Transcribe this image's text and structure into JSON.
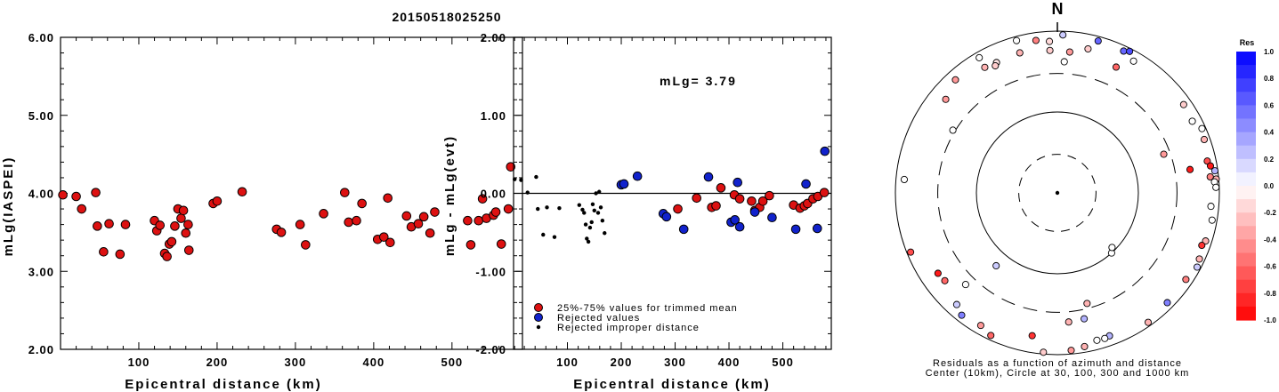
{
  "page_title": "20150518025250",
  "chart_data": [
    {
      "type": "scatter",
      "xlabel": "Epicentral distance (km)",
      "ylabel": "mLg(IASPEI)",
      "xlim": [
        0,
        590
      ],
      "ylim": [
        2.0,
        6.0
      ],
      "xticks": [
        "100",
        "200",
        "300",
        "400",
        "500"
      ],
      "yticks": [
        "2.00",
        "3.00",
        "4.00",
        "5.00",
        "6.00"
      ],
      "series": [
        {
          "color": "#dd1111",
          "points": [
            [
              3,
              3.98
            ],
            [
              20,
              3.96
            ],
            [
              27,
              3.8
            ],
            [
              45,
              4.01
            ],
            [
              47,
              3.58
            ],
            [
              55,
              3.25
            ],
            [
              62,
              3.61
            ],
            [
              76,
              3.22
            ],
            [
              83,
              3.6
            ],
            [
              120,
              3.65
            ],
            [
              123,
              3.52
            ],
            [
              127,
              3.59
            ],
            [
              133,
              3.23
            ],
            [
              136,
              3.19
            ],
            [
              139,
              3.35
            ],
            [
              142,
              3.38
            ],
            [
              146,
              3.58
            ],
            [
              150,
              3.8
            ],
            [
              154,
              3.68
            ],
            [
              157,
              3.78
            ],
            [
              160,
              3.49
            ],
            [
              163,
              3.6
            ],
            [
              164,
              3.27
            ],
            [
              195,
              3.87
            ],
            [
              200,
              3.9
            ],
            [
              232,
              4.02
            ],
            [
              276,
              3.54
            ],
            [
              282,
              3.5
            ],
            [
              306,
              3.6
            ],
            [
              313,
              3.34
            ],
            [
              336,
              3.74
            ],
            [
              363,
              4.01
            ],
            [
              368,
              3.63
            ],
            [
              378,
              3.65
            ],
            [
              385,
              3.87
            ],
            [
              405,
              3.41
            ],
            [
              413,
              3.44
            ],
            [
              418,
              3.94
            ],
            [
              421,
              3.37
            ],
            [
              442,
              3.71
            ],
            [
              448,
              3.57
            ],
            [
              457,
              3.61
            ],
            [
              464,
              3.7
            ],
            [
              472,
              3.49
            ],
            [
              478,
              3.76
            ],
            [
              520,
              3.65
            ],
            [
              524,
              3.34
            ],
            [
              534,
              3.65
            ],
            [
              539,
              3.93
            ],
            [
              544,
              3.68
            ],
            [
              553,
              3.72
            ],
            [
              556,
              3.76
            ],
            [
              563,
              3.35
            ],
            [
              572,
              3.8
            ],
            [
              575,
              4.34
            ]
          ]
        }
      ]
    },
    {
      "type": "scatter",
      "xlabel": "Epicentral distance (km)",
      "ylabel": "mLg - mLg(evt)",
      "xlim": [
        0,
        590
      ],
      "ylim": [
        -2.0,
        2.0
      ],
      "xticks": [
        "100",
        "200",
        "300",
        "400",
        "500"
      ],
      "yticks": [
        "-2.00",
        "-1.00",
        "0.00",
        "1.00",
        "2.00"
      ],
      "annotation": "mLg= 3.79",
      "legend": {
        "placement": "bottom-left",
        "items": [
          {
            "label": "25%-75% values for trimmed mean",
            "color": "#dd1111"
          },
          {
            "label": "Rejected values",
            "color": "#1122cc"
          },
          {
            "label": "Rejected improper distance",
            "color": "#000000"
          }
        ]
      },
      "series": [
        {
          "name": "25%-75% values for trimmed mean",
          "color": "#dd1111",
          "points": [
            [
              305,
              -0.2
            ],
            [
              340,
              -0.06
            ],
            [
              368,
              -0.18
            ],
            [
              376,
              -0.16
            ],
            [
              385,
              0.07
            ],
            [
              410,
              -0.02
            ],
            [
              420,
              -0.07
            ],
            [
              442,
              -0.1
            ],
            [
              448,
              -0.22
            ],
            [
              457,
              -0.18
            ],
            [
              463,
              -0.1
            ],
            [
              475,
              -0.03
            ],
            [
              520,
              -0.15
            ],
            [
              532,
              -0.19
            ],
            [
              540,
              -0.16
            ],
            [
              546,
              -0.13
            ],
            [
              556,
              -0.07
            ],
            [
              565,
              -0.04
            ],
            [
              577,
              0.01
            ]
          ]
        },
        {
          "name": "Rejected values",
          "color": "#1122cc",
          "points": [
            [
              200,
              0.11
            ],
            [
              205,
              0.12
            ],
            [
              230,
              0.22
            ],
            [
              278,
              -0.26
            ],
            [
              284,
              -0.3
            ],
            [
              316,
              -0.46
            ],
            [
              362,
              0.21
            ],
            [
              404,
              -0.37
            ],
            [
              411,
              -0.34
            ],
            [
              416,
              0.14
            ],
            [
              420,
              -0.43
            ],
            [
              448,
              -0.24
            ],
            [
              480,
              -0.31
            ],
            [
              524,
              -0.46
            ],
            [
              543,
              0.12
            ],
            [
              564,
              -0.45
            ],
            [
              578,
              0.54
            ]
          ]
        },
        {
          "name": "Rejected improper distance",
          "color": "#000000",
          "points": [
            [
              2,
              0.18
            ],
            [
              14,
              0.17
            ],
            [
              26,
              0.01
            ],
            [
              42,
              0.21
            ],
            [
              45,
              -0.2
            ],
            [
              55,
              -0.53
            ],
            [
              62,
              -0.18
            ],
            [
              76,
              -0.56
            ],
            [
              85,
              -0.19
            ],
            [
              122,
              -0.15
            ],
            [
              128,
              -0.21
            ],
            [
              131,
              -0.25
            ],
            [
              134,
              -0.4
            ],
            [
              136,
              -0.58
            ],
            [
              139,
              -0.62
            ],
            [
              142,
              -0.44
            ],
            [
              145,
              -0.37
            ],
            [
              147,
              -0.14
            ],
            [
              150,
              -0.22
            ],
            [
              153,
              0.0
            ],
            [
              157,
              -0.25
            ],
            [
              159,
              0.02
            ],
            [
              162,
              -0.18
            ],
            [
              165,
              -0.35
            ],
            [
              169,
              -0.51
            ]
          ]
        }
      ]
    },
    {
      "type": "polar_scatter",
      "north_label": "N",
      "caption_line1": "Residuals as a function of azimuth and distance",
      "caption_line2": "Center (10km), Circle at 30, 100, 300 and 1000 km",
      "colorbar": {
        "title": "Res",
        "min": -1.0,
        "max": 1.0,
        "tick_labels": [
          "1.0",
          "0.8",
          "0.6",
          "0.4",
          "0.2",
          "0.0",
          "-0.2",
          "-0.4",
          "-0.6",
          "-0.8",
          "-1.0"
        ]
      },
      "points_az_km_res": [
        [
          357,
          750,
          -0.15
        ],
        [
          2,
          900,
          0.2
        ],
        [
          15,
          880,
          0.6
        ],
        [
          25,
          860,
          0.6
        ],
        [
          12,
          660,
          -0.2
        ],
        [
          357,
          580,
          -0.2
        ],
        [
          345,
          620,
          -0.3
        ],
        [
          335,
          600,
          -0.1
        ],
        [
          334,
          560,
          -0.2
        ],
        [
          330,
          620,
          -0.3
        ],
        [
          3,
          420,
          0.0
        ],
        [
          5,
          560,
          -0.4
        ],
        [
          25,
          520,
          -0.6
        ],
        [
          30,
          760,
          0
        ],
        [
          27,
          920,
          0.7
        ],
        [
          352,
          800,
          -0.5
        ],
        [
          345,
          890,
          0
        ],
        [
          318,
          760,
          -0.4
        ],
        [
          330,
          850,
          0
        ],
        [
          310,
          630,
          -0.4
        ],
        [
          301,
          320,
          0.0
        ],
        [
          275,
          790,
          0.0
        ],
        [
          248,
          900,
          -0.7
        ],
        [
          236,
          600,
          -0.9
        ],
        [
          232,
          580,
          -0.6
        ],
        [
          225,
          400,
          0.0
        ],
        [
          55,
          800,
          -0.2
        ],
        [
          62,
          770,
          0.0
        ],
        [
          66,
          900,
          0.0
        ],
        [
          70,
          850,
          -0.3
        ],
        [
          78,
          780,
          -0.7
        ],
        [
          80,
          830,
          -0.9
        ],
        [
          82,
          920,
          0.3
        ],
        [
          84,
          790,
          -0.5
        ],
        [
          85,
          930,
          -0.3
        ],
        [
          86,
          880,
          0.0
        ],
        [
          88,
          910,
          0.0
        ],
        [
          95,
          800,
          0.0
        ],
        [
          100,
          870,
          0.0
        ],
        [
          108,
          840,
          -0.3
        ],
        [
          110,
          790,
          -0.8
        ],
        [
          115,
          860,
          -0.3
        ],
        [
          118,
          900,
          0.2
        ],
        [
          124,
          820,
          -0.5
        ],
        [
          80,
          460,
          -0.9
        ],
        [
          70,
          250,
          -0.4
        ],
        [
          165,
          260,
          -0.3
        ],
        [
          168,
          390,
          0.3
        ],
        [
          175,
          400,
          -0.3
        ],
        [
          135,
          830,
          0.5
        ],
        [
          145,
          900,
          -0.3
        ],
        [
          160,
          760,
          0.3
        ],
        [
          162,
          780,
          0.0
        ],
        [
          165,
          770,
          0.0
        ],
        [
          170,
          850,
          -0.3
        ],
        [
          175,
          900,
          -0.4
        ],
        [
          185,
          950,
          -0.2
        ],
        [
          190,
          620,
          -0.8
        ],
        [
          205,
          880,
          -0.6
        ],
        [
          210,
          780,
          -0.4
        ],
        [
          218,
          830,
          0.5
        ],
        [
          222,
          720,
          0.2
        ],
        [
          138,
          100,
          0.0
        ],
        [
          135,
          90,
          0.0
        ],
        [
          220,
          150,
          0.2
        ]
      ]
    }
  ]
}
